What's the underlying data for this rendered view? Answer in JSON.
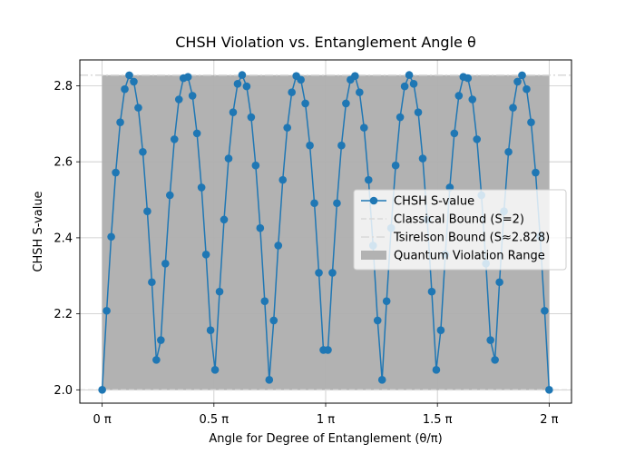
{
  "chart_data": {
    "type": "line",
    "title": "CHSH Violation vs. Entanglement Angle θ",
    "xlabel": "Angle for Degree of Entanglement (θ/π)",
    "ylabel": "CHSH S-value",
    "xlim": [
      -0.1,
      2.1
    ],
    "ylim": [
      1.965,
      2.868
    ],
    "x_tick_values": [
      0,
      0.5,
      1,
      1.5,
      2
    ],
    "x_tick_labels": [
      "0 π",
      "0.5 π",
      "1 π",
      "1.5 π",
      "2 π"
    ],
    "y_tick_values": [
      2.0,
      2.2,
      2.4,
      2.6,
      2.8
    ],
    "y_tick_labels": [
      "2.0",
      "2.2",
      "2.4",
      "2.6",
      "2.8"
    ],
    "grid": true,
    "legend_position": "center-right",
    "series": [
      {
        "name": "CHSH S-value",
        "kind": "line-markers",
        "color": "#1f77b4",
        "x_range": [
          0,
          2
        ],
        "n_points": 100,
        "formula": "S = 2 + (2*sqrt(2) - 2) * |sin(4*pi*x)|, x = theta/pi"
      },
      {
        "name": "Classical Bound (S=2)",
        "kind": "hline",
        "y": 2.0,
        "color": "#d9d9d9",
        "style": "dashed"
      },
      {
        "name": "Tsirelson Bound (S≈2.828)",
        "kind": "hline",
        "y": 2.828,
        "color": "#d9d9d9",
        "style": "dashdot"
      },
      {
        "name": "Quantum Violation Range",
        "kind": "fill",
        "x_range": [
          0,
          2
        ],
        "y_range": [
          2.0,
          2.828
        ],
        "color": "#b2b2b2"
      }
    ]
  }
}
